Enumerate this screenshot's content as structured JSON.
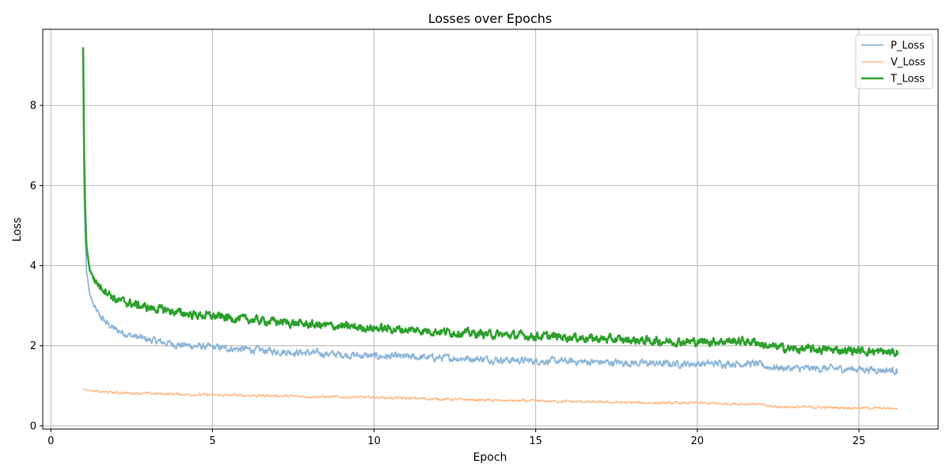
{
  "chart_data": {
    "type": "line",
    "title": "Losses over Epochs",
    "xlabel": "Epoch",
    "ylabel": "Loss",
    "xlim": [
      -0.25,
      27.45
    ],
    "ylim": [
      -0.08,
      9.9
    ],
    "xticks": [
      0,
      5,
      10,
      15,
      20,
      25
    ],
    "yticks": [
      0,
      2,
      4,
      6,
      8
    ],
    "grid": true,
    "legend_position": "top-right",
    "series": [
      {
        "name": "P_Loss",
        "color": "#8cb6d8",
        "points": [
          [
            1.0,
            9.4
          ],
          [
            1.03,
            6.0
          ],
          [
            1.06,
            4.9
          ],
          [
            1.1,
            3.9
          ],
          [
            1.2,
            3.3
          ],
          [
            1.35,
            2.95
          ],
          [
            1.5,
            2.75
          ],
          [
            1.75,
            2.55
          ],
          [
            2.0,
            2.4
          ],
          [
            2.5,
            2.25
          ],
          [
            3.0,
            2.15
          ],
          [
            3.5,
            2.08
          ],
          [
            4.0,
            2.02
          ],
          [
            4.5,
            1.99
          ],
          [
            5.0,
            1.96
          ],
          [
            6.0,
            1.91
          ],
          [
            7.0,
            1.86
          ],
          [
            8.0,
            1.82
          ],
          [
            9.0,
            1.78
          ],
          [
            10.0,
            1.74
          ],
          [
            11.0,
            1.72
          ],
          [
            12.0,
            1.7
          ],
          [
            13.0,
            1.68
          ],
          [
            14.0,
            1.65
          ],
          [
            15.0,
            1.62
          ],
          [
            16.0,
            1.61
          ],
          [
            17.0,
            1.59
          ],
          [
            18.0,
            1.57
          ],
          [
            19.0,
            1.55
          ],
          [
            20.0,
            1.55
          ],
          [
            21.0,
            1.56
          ],
          [
            21.8,
            1.55
          ],
          [
            22.2,
            1.47
          ],
          [
            23.0,
            1.43
          ],
          [
            24.0,
            1.43
          ],
          [
            25.0,
            1.42
          ],
          [
            26.2,
            1.38
          ]
        ],
        "noise": 0.07
      },
      {
        "name": "V_Loss",
        "color": "#ffbb88",
        "points": [
          [
            1.0,
            0.92
          ],
          [
            1.3,
            0.86
          ],
          [
            2.0,
            0.83
          ],
          [
            3.0,
            0.81
          ],
          [
            4.0,
            0.79
          ],
          [
            5.0,
            0.77
          ],
          [
            6.0,
            0.76
          ],
          [
            7.0,
            0.75
          ],
          [
            8.0,
            0.73
          ],
          [
            9.0,
            0.72
          ],
          [
            10.0,
            0.71
          ],
          [
            11.0,
            0.69
          ],
          [
            12.0,
            0.67
          ],
          [
            13.0,
            0.65
          ],
          [
            14.0,
            0.63
          ],
          [
            15.0,
            0.62
          ],
          [
            16.0,
            0.61
          ],
          [
            17.0,
            0.59
          ],
          [
            18.0,
            0.58
          ],
          [
            19.0,
            0.57
          ],
          [
            20.0,
            0.57
          ],
          [
            21.0,
            0.55
          ],
          [
            21.8,
            0.55
          ],
          [
            22.3,
            0.48
          ],
          [
            23.0,
            0.47
          ],
          [
            24.0,
            0.46
          ],
          [
            25.0,
            0.45
          ],
          [
            26.2,
            0.43
          ]
        ],
        "noise": 0.025
      },
      {
        "name": "T_Loss",
        "color": "#2ca02c",
        "points": [
          [
            1.0,
            9.45
          ],
          [
            1.03,
            6.8
          ],
          [
            1.06,
            5.5
          ],
          [
            1.1,
            4.5
          ],
          [
            1.2,
            3.9
          ],
          [
            1.35,
            3.65
          ],
          [
            1.5,
            3.5
          ],
          [
            1.75,
            3.35
          ],
          [
            2.0,
            3.15
          ],
          [
            2.5,
            3.05
          ],
          [
            3.0,
            2.95
          ],
          [
            3.5,
            2.9
          ],
          [
            4.0,
            2.82
          ],
          [
            4.5,
            2.77
          ],
          [
            5.0,
            2.74
          ],
          [
            6.0,
            2.66
          ],
          [
            7.0,
            2.6
          ],
          [
            8.0,
            2.53
          ],
          [
            9.0,
            2.48
          ],
          [
            10.0,
            2.44
          ],
          [
            11.0,
            2.4
          ],
          [
            12.0,
            2.36
          ],
          [
            13.0,
            2.31
          ],
          [
            14.0,
            2.27
          ],
          [
            15.0,
            2.24
          ],
          [
            16.0,
            2.22
          ],
          [
            17.0,
            2.17
          ],
          [
            18.0,
            2.14
          ],
          [
            19.0,
            2.11
          ],
          [
            20.0,
            2.1
          ],
          [
            21.0,
            2.12
          ],
          [
            21.8,
            2.1
          ],
          [
            22.2,
            1.98
          ],
          [
            23.0,
            1.92
          ],
          [
            24.0,
            1.9
          ],
          [
            25.0,
            1.88
          ],
          [
            26.2,
            1.82
          ]
        ],
        "noise": 0.08
      }
    ]
  }
}
